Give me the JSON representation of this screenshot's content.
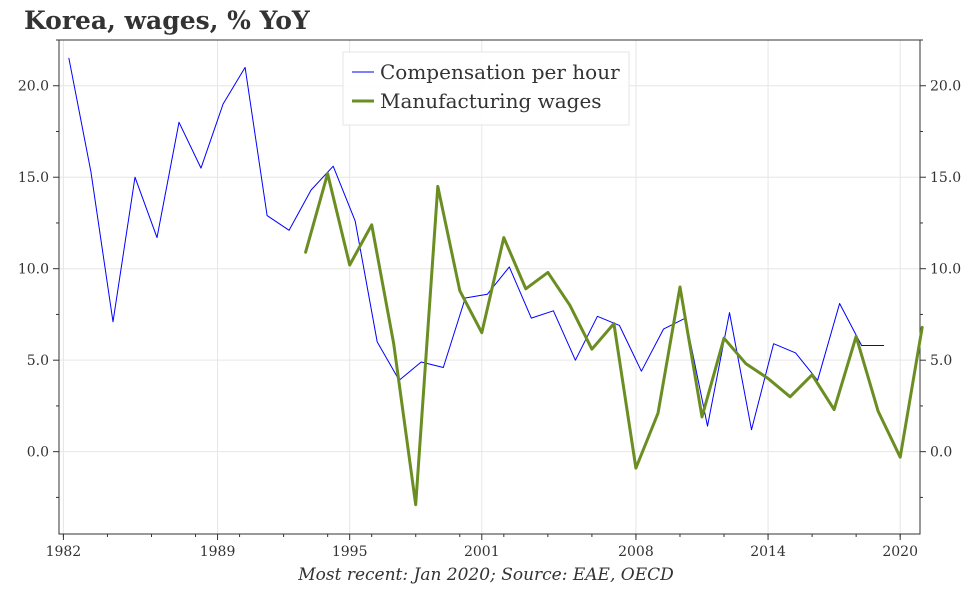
{
  "chart_data": {
    "type": "line",
    "title": "Korea, wages, % YoY",
    "source_note": "Most recent: Jan 2020; Source: EAE, OECD",
    "x_ticks": [
      "1982",
      "1989",
      "1995",
      "2001",
      "2008",
      "2014",
      "2020"
    ],
    "y_ticks": [
      "0.0",
      "5.0",
      "10.0",
      "15.0",
      "20.0"
    ],
    "y_range": [
      -4.5,
      22.5
    ],
    "x_range": [
      1981.8,
      2020.9
    ],
    "grid": true,
    "dual_y_axis": true,
    "legend_position": "top-center",
    "series": [
      {
        "name": "Compensation per hour",
        "color": "#0000ff",
        "points": [
          [
            1982.25,
            21.5
          ],
          [
            1983.25,
            15.3
          ],
          [
            1984.25,
            7.1
          ],
          [
            1985.25,
            15.0
          ],
          [
            1986.25,
            11.7
          ],
          [
            1987.25,
            18.0
          ],
          [
            1988.25,
            15.5
          ],
          [
            1989.25,
            19.0
          ],
          [
            1990.25,
            21.0
          ],
          [
            1991.25,
            12.9
          ],
          [
            1992.25,
            12.1
          ],
          [
            1993.25,
            14.3
          ],
          [
            1994.25,
            15.6
          ],
          [
            1995.25,
            12.6
          ],
          [
            1996.25,
            6.0
          ],
          [
            1997.25,
            3.9
          ],
          [
            1998.25,
            4.9
          ],
          [
            1999.25,
            4.6
          ],
          [
            2000.25,
            8.4
          ],
          [
            2001.25,
            8.6
          ],
          [
            2002.25,
            10.1
          ],
          [
            2003.25,
            7.3
          ],
          [
            2004.25,
            7.7
          ],
          [
            2005.25,
            5.0
          ],
          [
            2006.25,
            7.4
          ],
          [
            2007.25,
            6.9
          ],
          [
            2008.25,
            4.4
          ],
          [
            2009.25,
            6.7
          ],
          [
            2010.25,
            7.3
          ],
          [
            2011.25,
            1.4
          ],
          [
            2012.25,
            7.6
          ],
          [
            2013.25,
            1.2
          ],
          [
            2014.25,
            5.9
          ],
          [
            2015.25,
            5.4
          ],
          [
            2016.25,
            3.9
          ],
          [
            2017.25,
            8.1
          ],
          [
            2018.25,
            5.8
          ],
          [
            2019.25,
            5.8
          ]
        ]
      },
      {
        "name": "Manufacturing wages",
        "color": "#6b8e23",
        "points": [
          [
            1993.0,
            10.9
          ],
          [
            1994.0,
            15.2
          ],
          [
            1995.0,
            10.2
          ],
          [
            1996.0,
            12.4
          ],
          [
            1997.0,
            5.9
          ],
          [
            1998.0,
            -2.9
          ],
          [
            1999.0,
            14.5
          ],
          [
            2000.0,
            8.8
          ],
          [
            2001.0,
            6.5
          ],
          [
            2002.0,
            11.7
          ],
          [
            2003.0,
            8.9
          ],
          [
            2004.0,
            9.8
          ],
          [
            2005.0,
            8.0
          ],
          [
            2006.0,
            5.6
          ],
          [
            2007.0,
            7.0
          ],
          [
            2008.0,
            -0.9
          ],
          [
            2009.0,
            2.1
          ],
          [
            2010.0,
            9.0
          ],
          [
            2011.0,
            1.9
          ],
          [
            2012.0,
            6.2
          ],
          [
            2013.0,
            4.8
          ],
          [
            2014.0,
            4.0
          ],
          [
            2015.0,
            3.0
          ],
          [
            2016.0,
            4.2
          ],
          [
            2017.0,
            2.3
          ],
          [
            2018.0,
            6.3
          ],
          [
            2019.0,
            2.2
          ],
          [
            2020.0,
            -0.3
          ],
          [
            2021.0,
            6.8
          ]
        ]
      }
    ]
  }
}
